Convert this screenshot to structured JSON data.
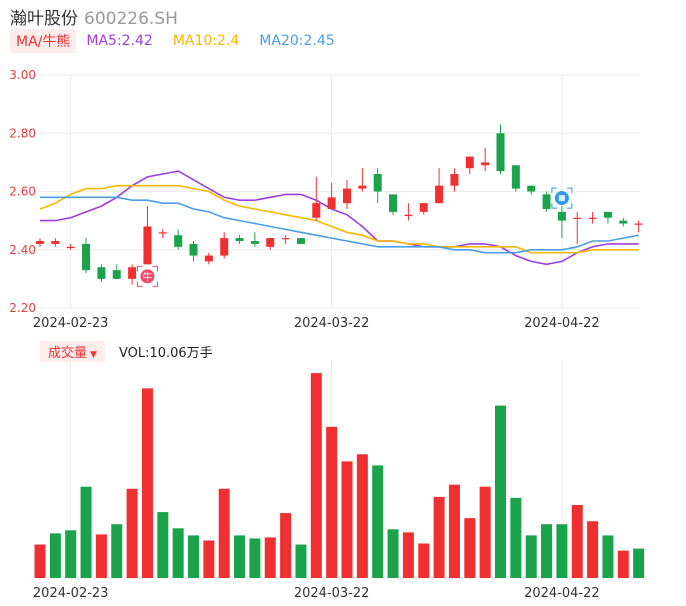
{
  "header": {
    "name": "瀚叶股份",
    "code": "600226.SH"
  },
  "ma_legend": {
    "tag": "MA/牛熊",
    "items": [
      {
        "label": "MA5:2.42",
        "color": "#9b3fe0"
      },
      {
        "label": "MA10:2.4",
        "color": "#f5b800"
      },
      {
        "label": "MA20:2.45",
        "color": "#4a9ee8"
      }
    ]
  },
  "volume_legend": {
    "tag": "成交量",
    "arrow": "▼",
    "text": "VOL:10.06万手"
  },
  "markers": {
    "bull": "牛"
  },
  "colors": {
    "up": "#f03030",
    "down": "#1aa34a"
  },
  "chart_data": [
    {
      "type": "candlestick",
      "y_ticks": [
        "3.00",
        "2.80",
        "2.60",
        "2.40",
        "2.20"
      ],
      "ylim": [
        2.2,
        3.0
      ],
      "x_labels": [
        "2024-02-23",
        "2024-03-22",
        "2024-04-22"
      ],
      "x_label_index": [
        2,
        19,
        34
      ],
      "candles": [
        {
          "o": 2.42,
          "c": 2.43,
          "h": 2.44,
          "l": 2.41
        },
        {
          "o": 2.42,
          "c": 2.43,
          "h": 2.44,
          "l": 2.41
        },
        {
          "o": 2.41,
          "c": 2.41,
          "h": 2.42,
          "l": 2.4
        },
        {
          "o": 2.42,
          "c": 2.33,
          "h": 2.44,
          "l": 2.32
        },
        {
          "o": 2.34,
          "c": 2.3,
          "h": 2.35,
          "l": 2.29
        },
        {
          "o": 2.33,
          "c": 2.3,
          "h": 2.35,
          "l": 2.3
        },
        {
          "o": 2.3,
          "c": 2.34,
          "h": 2.35,
          "l": 2.28
        },
        {
          "o": 2.35,
          "c": 2.48,
          "h": 2.55,
          "l": 2.35
        },
        {
          "o": 2.46,
          "c": 2.46,
          "h": 2.47,
          "l": 2.44
        },
        {
          "o": 2.45,
          "c": 2.41,
          "h": 2.47,
          "l": 2.4
        },
        {
          "o": 2.42,
          "c": 2.38,
          "h": 2.43,
          "l": 2.36
        },
        {
          "o": 2.36,
          "c": 2.38,
          "h": 2.39,
          "l": 2.35
        },
        {
          "o": 2.38,
          "c": 2.44,
          "h": 2.46,
          "l": 2.37
        },
        {
          "o": 2.44,
          "c": 2.43,
          "h": 2.45,
          "l": 2.42
        },
        {
          "o": 2.43,
          "c": 2.42,
          "h": 2.46,
          "l": 2.41
        },
        {
          "o": 2.41,
          "c": 2.44,
          "h": 2.44,
          "l": 2.4
        },
        {
          "o": 2.44,
          "c": 2.44,
          "h": 2.45,
          "l": 2.42
        },
        {
          "o": 2.44,
          "c": 2.42,
          "h": 2.44,
          "l": 2.42
        },
        {
          "o": 2.51,
          "c": 2.56,
          "h": 2.65,
          "l": 2.5
        },
        {
          "o": 2.54,
          "c": 2.58,
          "h": 2.63,
          "l": 2.54
        },
        {
          "o": 2.56,
          "c": 2.61,
          "h": 2.64,
          "l": 2.54
        },
        {
          "o": 2.61,
          "c": 2.62,
          "h": 2.68,
          "l": 2.6
        },
        {
          "o": 2.66,
          "c": 2.6,
          "h": 2.68,
          "l": 2.56
        },
        {
          "o": 2.59,
          "c": 2.53,
          "h": 2.59,
          "l": 2.52
        },
        {
          "o": 2.52,
          "c": 2.52,
          "h": 2.56,
          "l": 2.5
        },
        {
          "o": 2.53,
          "c": 2.56,
          "h": 2.56,
          "l": 2.52
        },
        {
          "o": 2.56,
          "c": 2.62,
          "h": 2.68,
          "l": 2.56
        },
        {
          "o": 2.62,
          "c": 2.66,
          "h": 2.68,
          "l": 2.6
        },
        {
          "o": 2.68,
          "c": 2.72,
          "h": 2.72,
          "l": 2.66
        },
        {
          "o": 2.69,
          "c": 2.7,
          "h": 2.75,
          "l": 2.67
        },
        {
          "o": 2.8,
          "c": 2.67,
          "h": 2.83,
          "l": 2.66
        },
        {
          "o": 2.69,
          "c": 2.61,
          "h": 2.69,
          "l": 2.6
        },
        {
          "o": 2.62,
          "c": 2.6,
          "h": 2.62,
          "l": 2.59
        },
        {
          "o": 2.59,
          "c": 2.54,
          "h": 2.6,
          "l": 2.53
        },
        {
          "o": 2.53,
          "c": 2.5,
          "h": 2.55,
          "l": 2.44
        },
        {
          "o": 2.51,
          "c": 2.51,
          "h": 2.53,
          "l": 2.42
        },
        {
          "o": 2.51,
          "c": 2.51,
          "h": 2.53,
          "l": 2.49
        },
        {
          "o": 2.53,
          "c": 2.51,
          "h": 2.53,
          "l": 2.49
        },
        {
          "o": 2.5,
          "c": 2.49,
          "h": 2.51,
          "l": 2.48
        },
        {
          "o": 2.49,
          "c": 2.49,
          "h": 2.5,
          "l": 2.46
        }
      ],
      "ma_series": [
        {
          "name": "MA5",
          "values": [
            2.5,
            2.5,
            2.51,
            2.53,
            2.55,
            2.58,
            2.62,
            2.65,
            2.66,
            2.67,
            2.64,
            2.61,
            2.58,
            2.57,
            2.57,
            2.58,
            2.59,
            2.59,
            2.57,
            2.54,
            2.52,
            2.48,
            2.43,
            2.43,
            2.42,
            2.41,
            2.41,
            2.41,
            2.42,
            2.42,
            2.41,
            2.38,
            2.36,
            2.35,
            2.36,
            2.39,
            2.41,
            2.42,
            2.42,
            2.42
          ]
        },
        {
          "name": "MA10",
          "values": [
            2.54,
            2.56,
            2.59,
            2.61,
            2.61,
            2.62,
            2.62,
            2.62,
            2.62,
            2.62,
            2.61,
            2.6,
            2.57,
            2.55,
            2.54,
            2.53,
            2.52,
            2.51,
            2.5,
            2.48,
            2.46,
            2.45,
            2.43,
            2.43,
            2.42,
            2.42,
            2.41,
            2.41,
            2.41,
            2.41,
            2.41,
            2.41,
            2.39,
            2.39,
            2.39,
            2.39,
            2.4,
            2.4,
            2.4,
            2.4
          ]
        },
        {
          "name": "MA20",
          "values": [
            2.58,
            2.58,
            2.58,
            2.58,
            2.58,
            2.58,
            2.57,
            2.57,
            2.56,
            2.56,
            2.54,
            2.53,
            2.51,
            2.5,
            2.49,
            2.48,
            2.47,
            2.46,
            2.45,
            2.44,
            2.43,
            2.42,
            2.41,
            2.41,
            2.41,
            2.41,
            2.41,
            2.4,
            2.4,
            2.39,
            2.39,
            2.39,
            2.4,
            2.4,
            2.4,
            2.41,
            2.43,
            2.43,
            2.44,
            2.45
          ]
        }
      ],
      "annotations": [
        {
          "index": 7,
          "label": "牛",
          "type": "bull"
        },
        {
          "index": 34,
          "type": "bear"
        }
      ]
    },
    {
      "type": "bar",
      "title": "成交量",
      "values": [
        33,
        44,
        47,
        90,
        43,
        53,
        88,
        187,
        65,
        49,
        42,
        37,
        88,
        42,
        39,
        40,
        64,
        33,
        202,
        149,
        115,
        122,
        111,
        48,
        45,
        34,
        80,
        92,
        59,
        90,
        170,
        79,
        42,
        53,
        53,
        72,
        56,
        42,
        27,
        29
      ],
      "directions": [
        "up",
        "down",
        "down",
        "down",
        "up",
        "down",
        "up",
        "up",
        "down",
        "down",
        "down",
        "up",
        "up",
        "down",
        "down",
        "up",
        "up",
        "down",
        "up",
        "up",
        "up",
        "up",
        "down",
        "down",
        "up",
        "up",
        "up",
        "up",
        "up",
        "up",
        "down",
        "down",
        "down",
        "down",
        "down",
        "up",
        "up",
        "down",
        "up",
        "down"
      ],
      "x_labels": [
        "2024-02-23",
        "2024-03-22",
        "2024-04-22"
      ],
      "x_label_index": [
        2,
        19,
        34
      ]
    }
  ]
}
